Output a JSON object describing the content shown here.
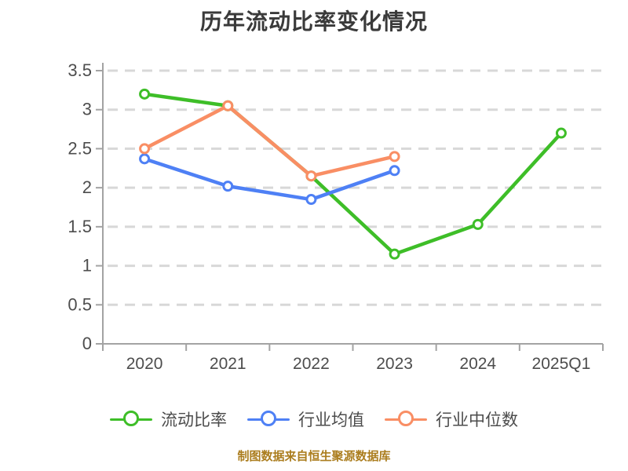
{
  "title": "历年流动比率变化情况",
  "caption": "制图数据来自恒生聚源数据库",
  "chart_data": {
    "type": "line",
    "title": "历年流动比率变化情况",
    "categories": [
      "2020",
      "2021",
      "2022",
      "2023",
      "2024",
      "2025Q1"
    ],
    "series": [
      {
        "name": "流动比率",
        "color": "#3ebe28",
        "values": [
          3.2,
          3.05,
          2.15,
          1.15,
          1.53,
          2.7
        ]
      },
      {
        "name": "行业均值",
        "color": "#4e80f5",
        "values": [
          2.37,
          2.02,
          1.85,
          2.22,
          null,
          null
        ]
      },
      {
        "name": "行业中位数",
        "color": "#f98e64",
        "values": [
          2.5,
          3.05,
          2.15,
          2.4,
          null,
          null
        ]
      }
    ],
    "ylim": [
      0,
      3.5
    ],
    "ytick_step": 0.5,
    "yticks": [
      0,
      0.5,
      1,
      1.5,
      2,
      2.5,
      3,
      3.5
    ],
    "grid": "horizontal-dashed",
    "legend_position": "bottom",
    "marker_style": "circle-white-fill",
    "colors": {
      "title_text": "#3a3a3a",
      "axis_line": "#a3a3a3",
      "tick_label": "#4d4d4d",
      "gridline": "#d8d8d8",
      "legend_text": "#4c4c4c",
      "caption_text": "#ab7d1e"
    }
  }
}
